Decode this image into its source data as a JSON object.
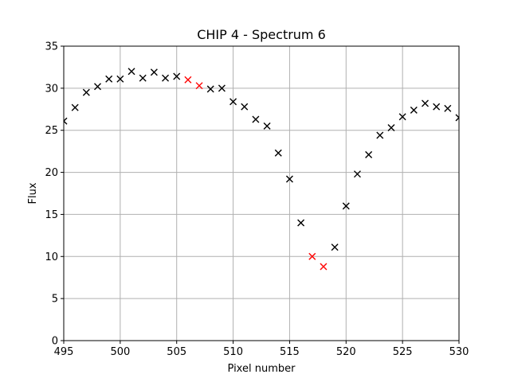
{
  "chart_data": {
    "type": "scatter",
    "title": "CHIP 4 - Spectrum 6",
    "xlabel": "Pixel number",
    "ylabel": "Flux",
    "xlim": [
      495,
      530
    ],
    "ylim": [
      0,
      35
    ],
    "xticks": [
      495,
      500,
      505,
      510,
      515,
      520,
      525,
      530
    ],
    "yticks": [
      0,
      5,
      10,
      15,
      20,
      25,
      30,
      35
    ],
    "grid": true,
    "marker": "x",
    "colors": {
      "normal": "#000000",
      "flagged": "#ff0000",
      "grid": "#b0b0b0"
    },
    "points": [
      {
        "x": 495,
        "y": 26.1,
        "flagged": false
      },
      {
        "x": 496,
        "y": 27.7,
        "flagged": false
      },
      {
        "x": 497,
        "y": 29.5,
        "flagged": false
      },
      {
        "x": 498,
        "y": 30.2,
        "flagged": false
      },
      {
        "x": 499,
        "y": 31.1,
        "flagged": false
      },
      {
        "x": 500,
        "y": 31.1,
        "flagged": false
      },
      {
        "x": 501,
        "y": 32.0,
        "flagged": false
      },
      {
        "x": 502,
        "y": 31.2,
        "flagged": false
      },
      {
        "x": 503,
        "y": 31.9,
        "flagged": false
      },
      {
        "x": 504,
        "y": 31.2,
        "flagged": false
      },
      {
        "x": 505,
        "y": 31.4,
        "flagged": false
      },
      {
        "x": 506,
        "y": 31.0,
        "flagged": true
      },
      {
        "x": 507,
        "y": 30.3,
        "flagged": true
      },
      {
        "x": 508,
        "y": 29.9,
        "flagged": false
      },
      {
        "x": 509,
        "y": 30.0,
        "flagged": false
      },
      {
        "x": 510,
        "y": 28.4,
        "flagged": false
      },
      {
        "x": 511,
        "y": 27.8,
        "flagged": false
      },
      {
        "x": 512,
        "y": 26.3,
        "flagged": false
      },
      {
        "x": 513,
        "y": 25.5,
        "flagged": false
      },
      {
        "x": 514,
        "y": 22.3,
        "flagged": false
      },
      {
        "x": 515,
        "y": 19.2,
        "flagged": false
      },
      {
        "x": 516,
        "y": 14.0,
        "flagged": false
      },
      {
        "x": 517,
        "y": 10.0,
        "flagged": true
      },
      {
        "x": 518,
        "y": 8.8,
        "flagged": true
      },
      {
        "x": 519,
        "y": 11.1,
        "flagged": false
      },
      {
        "x": 520,
        "y": 16.0,
        "flagged": false
      },
      {
        "x": 521,
        "y": 19.8,
        "flagged": false
      },
      {
        "x": 522,
        "y": 22.1,
        "flagged": false
      },
      {
        "x": 523,
        "y": 24.4,
        "flagged": false
      },
      {
        "x": 524,
        "y": 25.3,
        "flagged": false
      },
      {
        "x": 525,
        "y": 26.6,
        "flagged": false
      },
      {
        "x": 526,
        "y": 27.4,
        "flagged": false
      },
      {
        "x": 527,
        "y": 28.2,
        "flagged": false
      },
      {
        "x": 528,
        "y": 27.8,
        "flagged": false
      },
      {
        "x": 529,
        "y": 27.6,
        "flagged": false
      },
      {
        "x": 530,
        "y": 26.5,
        "flagged": false
      }
    ]
  }
}
